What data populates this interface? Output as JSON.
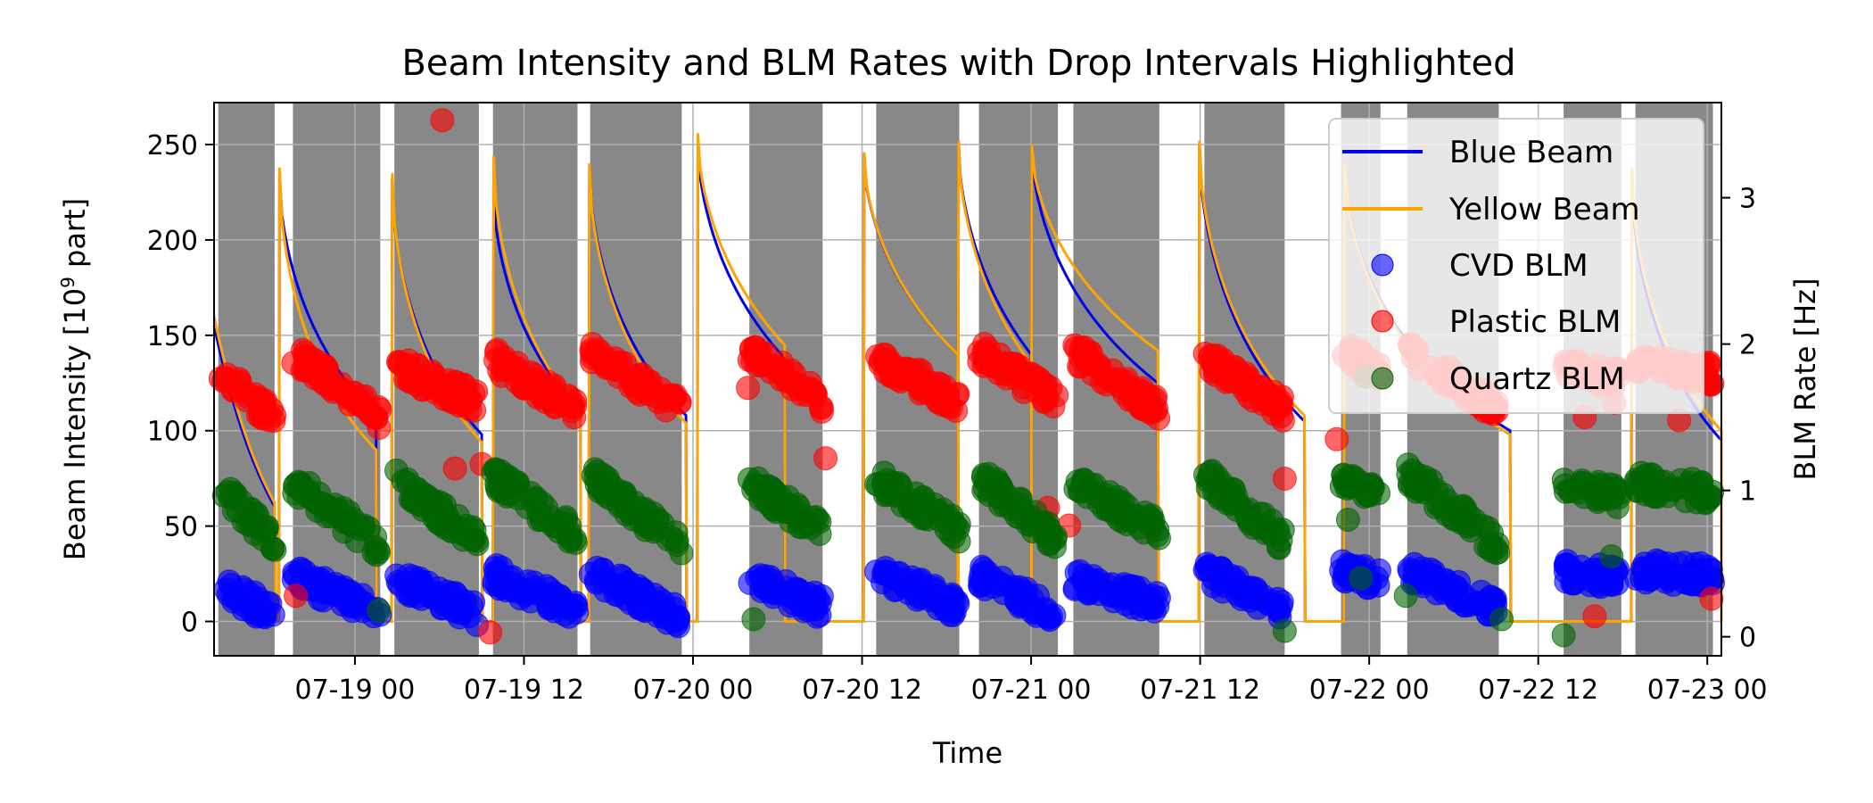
{
  "chart_data": {
    "type": "line",
    "title": "Beam Intensity and BLM Rates with Drop Intervals Highlighted",
    "xlabel": "Time",
    "ylabel_left_prefix": "Beam Intensity [10",
    "ylabel_left_exp": "9",
    "ylabel_left_suffix": " part]",
    "ylabel_right": "BLM Rate [Hz]",
    "x_range_hours": [
      0,
      107
    ],
    "y_left_range": [
      -18,
      272
    ],
    "y_right_range": [
      -0.13,
      3.65
    ],
    "x_ticks": [
      {
        "hour": 10,
        "label": "07-19 00"
      },
      {
        "hour": 22,
        "label": "07-19 12"
      },
      {
        "hour": 34,
        "label": "07-20 00"
      },
      {
        "hour": 46,
        "label": "07-20 12"
      },
      {
        "hour": 58,
        "label": "07-21 00"
      },
      {
        "hour": 70,
        "label": "07-21 12"
      },
      {
        "hour": 82,
        "label": "07-22 00"
      },
      {
        "hour": 94,
        "label": "07-22 12"
      },
      {
        "hour": 106,
        "label": "07-23 00"
      }
    ],
    "y_left_ticks": [
      0,
      50,
      100,
      150,
      200,
      250
    ],
    "y_right_ticks": [
      0,
      1,
      2,
      3
    ],
    "grid": true,
    "legend_position": "top-right",
    "drop_intervals_hours": [
      [
        0.3,
        4.3
      ],
      [
        5.6,
        11.8
      ],
      [
        12.8,
        18.8
      ],
      [
        19.8,
        25.8
      ],
      [
        26.7,
        33.2
      ],
      [
        38.0,
        43.2
      ],
      [
        47.0,
        52.9
      ],
      [
        54.3,
        59.9
      ],
      [
        61.0,
        67.1
      ],
      [
        70.3,
        76.0
      ],
      [
        80.0,
        82.8
      ],
      [
        84.7,
        91.2
      ],
      [
        95.8,
        99.9
      ],
      [
        100.9,
        106.4
      ]
    ],
    "series": [
      {
        "name": "Blue Beam",
        "kind": "line",
        "color": "#0000ee",
        "fills": [
          {
            "t0": 4.6,
            "t1": 11.5,
            "peak": 235,
            "end": 108
          },
          {
            "t0": 12.6,
            "t1": 19.0,
            "peak": 232,
            "end": 98
          },
          {
            "t0": 19.8,
            "t1": 26.0,
            "peak": 228,
            "end": 110
          },
          {
            "t0": 26.6,
            "t1": 33.5,
            "peak": 240,
            "end": 108
          },
          {
            "t0": 34.3,
            "t1": 40.5,
            "peak": 252,
            "end": 138
          },
          {
            "t0": 46.1,
            "t1": 52.8,
            "peak": 245,
            "end": 140
          },
          {
            "t0": 52.8,
            "t1": 58.0,
            "peak": 252,
            "end": 140
          },
          {
            "t0": 58.0,
            "t1": 67.0,
            "peak": 250,
            "end": 125
          },
          {
            "t0": 69.9,
            "t1": 77.4,
            "peak": 250,
            "end": 105
          },
          {
            "t0": 80.2,
            "t1": 92.0,
            "peak": 240,
            "end": 100
          },
          {
            "t0": 100.6,
            "t1": 107.0,
            "peak": 235,
            "end": 95
          }
        ]
      },
      {
        "name": "Yellow Beam",
        "kind": "line",
        "color": "#ffa500",
        "fills": [
          {
            "t0": 4.6,
            "t1": 11.5,
            "peak": 238,
            "end": 90
          },
          {
            "t0": 12.6,
            "t1": 19.0,
            "peak": 235,
            "end": 94
          },
          {
            "t0": 19.8,
            "t1": 26.0,
            "peak": 244,
            "end": 110
          },
          {
            "t0": 26.6,
            "t1": 33.5,
            "peak": 240,
            "end": 104
          },
          {
            "t0": 34.3,
            "t1": 40.5,
            "peak": 256,
            "end": 145
          },
          {
            "t0": 46.1,
            "t1": 52.8,
            "peak": 246,
            "end": 140
          },
          {
            "t0": 52.8,
            "t1": 58.0,
            "peak": 252,
            "end": 135
          },
          {
            "t0": 58.0,
            "t1": 67.0,
            "peak": 250,
            "end": 142
          },
          {
            "t0": 69.9,
            "t1": 77.4,
            "peak": 252,
            "end": 108
          },
          {
            "t0": 80.2,
            "t1": 92.0,
            "peak": 240,
            "end": 98
          },
          {
            "t0": 100.6,
            "t1": 107.0,
            "peak": 238,
            "end": 100
          }
        ]
      },
      {
        "name": "CVD BLM",
        "kind": "scatter",
        "color": "#0000ff",
        "axis": "right",
        "clusters": [
          {
            "t0": 0.4,
            "t1": 4.3,
            "start": 0.35,
            "end": 0.15
          },
          {
            "t0": 5.6,
            "t1": 11.8,
            "start": 0.42,
            "end": 0.15
          },
          {
            "t0": 12.8,
            "t1": 18.8,
            "start": 0.4,
            "end": 0.15
          },
          {
            "t0": 19.8,
            "t1": 25.8,
            "start": 0.42,
            "end": 0.18
          },
          {
            "t0": 26.7,
            "t1": 33.2,
            "start": 0.45,
            "end": 0.12
          },
          {
            "t0": 38.0,
            "t1": 43.2,
            "start": 0.4,
            "end": 0.2
          },
          {
            "t0": 47.0,
            "t1": 52.9,
            "start": 0.45,
            "end": 0.2
          },
          {
            "t0": 54.3,
            "t1": 59.9,
            "start": 0.42,
            "end": 0.15
          },
          {
            "t0": 61.0,
            "t1": 67.1,
            "start": 0.4,
            "end": 0.22
          },
          {
            "t0": 70.3,
            "t1": 76.0,
            "start": 0.45,
            "end": 0.18
          },
          {
            "t0": 80.0,
            "t1": 82.8,
            "start": 0.45,
            "end": 0.38
          },
          {
            "t0": 84.7,
            "t1": 91.2,
            "start": 0.45,
            "end": 0.2
          },
          {
            "t0": 95.8,
            "t1": 99.9,
            "start": 0.45,
            "end": 0.4
          },
          {
            "t0": 100.9,
            "t1": 106.4,
            "start": 0.45,
            "end": 0.42
          }
        ]
      },
      {
        "name": "Plastic BLM",
        "kind": "scatter",
        "color": "#ff0000",
        "axis": "right",
        "clusters": [
          {
            "t0": 0.4,
            "t1": 4.3,
            "start": 1.8,
            "end": 1.5
          },
          {
            "t0": 5.6,
            "t1": 11.8,
            "start": 1.95,
            "end": 1.5
          },
          {
            "t0": 12.8,
            "t1": 18.8,
            "start": 1.85,
            "end": 1.6
          },
          {
            "t0": 19.8,
            "t1": 25.8,
            "start": 1.9,
            "end": 1.55
          },
          {
            "t0": 26.7,
            "t1": 33.2,
            "start": 1.95,
            "end": 1.55
          },
          {
            "t0": 38.0,
            "t1": 43.2,
            "start": 1.95,
            "end": 1.6
          },
          {
            "t0": 47.0,
            "t1": 52.9,
            "start": 1.9,
            "end": 1.6
          },
          {
            "t0": 54.3,
            "t1": 59.9,
            "start": 1.95,
            "end": 1.6
          },
          {
            "t0": 61.0,
            "t1": 67.1,
            "start": 1.95,
            "end": 1.55
          },
          {
            "t0": 70.3,
            "t1": 76.0,
            "start": 1.9,
            "end": 1.55
          },
          {
            "t0": 80.0,
            "t1": 82.8,
            "start": 1.95,
            "end": 1.8
          },
          {
            "t0": 84.7,
            "t1": 91.2,
            "start": 1.95,
            "end": 1.55
          },
          {
            "t0": 95.8,
            "t1": 99.9,
            "start": 1.85,
            "end": 1.75
          },
          {
            "t0": 100.9,
            "t1": 106.4,
            "start": 1.85,
            "end": 1.8
          }
        ],
        "outliers": [
          [
            16.2,
            3.53
          ],
          [
            5.8,
            0.28
          ],
          [
            19.6,
            0.03
          ],
          [
            17.1,
            1.15
          ],
          [
            19.0,
            1.18
          ],
          [
            37.9,
            1.7
          ],
          [
            43.4,
            1.22
          ],
          [
            59.2,
            0.88
          ],
          [
            60.7,
            0.76
          ],
          [
            76.0,
            1.08
          ],
          [
            79.7,
            1.35
          ],
          [
            97.3,
            1.5
          ],
          [
            104.0,
            1.48
          ],
          [
            98.0,
            0.14
          ],
          [
            106.3,
            0.26
          ],
          [
            99.4,
            1.6
          ]
        ]
      },
      {
        "name": "Quartz BLM",
        "kind": "scatter",
        "color": "#006400",
        "axis": "right",
        "clusters": [
          {
            "t0": 0.4,
            "t1": 4.3,
            "start": 1.0,
            "end": 0.65
          },
          {
            "t0": 5.6,
            "t1": 11.8,
            "start": 1.05,
            "end": 0.62
          },
          {
            "t0": 12.8,
            "t1": 18.8,
            "start": 1.08,
            "end": 0.65
          },
          {
            "t0": 19.8,
            "t1": 25.8,
            "start": 1.1,
            "end": 0.68
          },
          {
            "t0": 26.7,
            "t1": 33.2,
            "start": 1.1,
            "end": 0.62
          },
          {
            "t0": 38.0,
            "t1": 43.2,
            "start": 1.05,
            "end": 0.72
          },
          {
            "t0": 47.0,
            "t1": 52.9,
            "start": 1.08,
            "end": 0.72
          },
          {
            "t0": 54.3,
            "t1": 59.9,
            "start": 1.1,
            "end": 0.65
          },
          {
            "t0": 61.0,
            "t1": 67.1,
            "start": 1.05,
            "end": 0.72
          },
          {
            "t0": 70.3,
            "t1": 76.0,
            "start": 1.1,
            "end": 0.65
          },
          {
            "t0": 80.0,
            "t1": 82.8,
            "start": 1.05,
            "end": 1.0
          },
          {
            "t0": 84.7,
            "t1": 91.2,
            "start": 1.12,
            "end": 0.62
          },
          {
            "t0": 95.8,
            "t1": 99.9,
            "start": 1.05,
            "end": 0.95
          },
          {
            "t0": 100.9,
            "t1": 106.4,
            "start": 1.05,
            "end": 0.98
          }
        ],
        "outliers": [
          [
            11.7,
            0.18
          ],
          [
            38.3,
            0.12
          ],
          [
            76.0,
            0.04
          ],
          [
            80.5,
            0.8
          ],
          [
            84.6,
            0.28
          ],
          [
            91.4,
            0.12
          ],
          [
            95.8,
            0.01
          ],
          [
            99.2,
            0.55
          ],
          [
            81.4,
            0.4
          ],
          [
            81.8,
            1.78
          ]
        ]
      }
    ]
  }
}
